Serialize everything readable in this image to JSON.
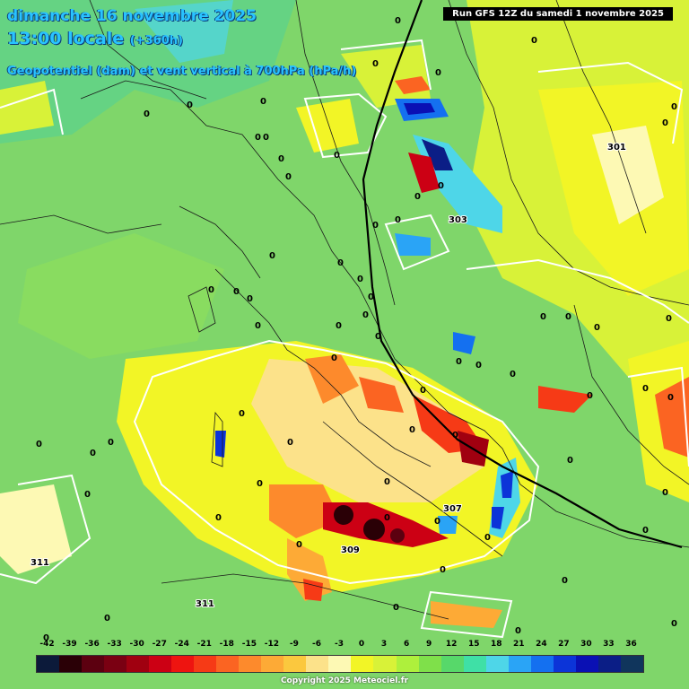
{
  "header": {
    "date_line": "dimanche 16 novembre 2025",
    "time_line": "13:00 locale",
    "time_offset": "(+360h)",
    "field_line": "Geopotentiel (dam) et vent vertical à 700hPa (hPa/h)",
    "run_label": "Run GFS 12Z du samedi 1 novembre 2025"
  },
  "map_labels": {
    "geopotential": [
      "301",
      "303",
      "307",
      "309",
      "311",
      "311"
    ],
    "vertical_zero": "0"
  },
  "legend": {
    "ticks": [
      "-42",
      "-39",
      "-36",
      "-33",
      "-30",
      "-27",
      "-24",
      "-21",
      "-18",
      "-15",
      "-12",
      "-9",
      "-6",
      "-3",
      "0",
      "3",
      "6",
      "9",
      "12",
      "15",
      "18",
      "21",
      "24",
      "27",
      "30",
      "33",
      "36"
    ],
    "colors": [
      "#0c1a3a",
      "#2a0006",
      "#5c0010",
      "#7a0012",
      "#a00010",
      "#cc0014",
      "#ee1410",
      "#f63a16",
      "#fb6422",
      "#fd8a2c",
      "#fdaa36",
      "#fbc83e",
      "#fce28a",
      "#fdf9b4",
      "#f2f526",
      "#d8f238",
      "#aef03c",
      "#7fe04a",
      "#57d86a",
      "#3fe0a6",
      "#4ed6e8",
      "#2aa4f6",
      "#1470f0",
      "#0c34d8",
      "#0a10b4",
      "#0b1e86",
      "#10355c"
    ]
  },
  "copyright": "Copyright 2025 Meteociel.fr"
}
